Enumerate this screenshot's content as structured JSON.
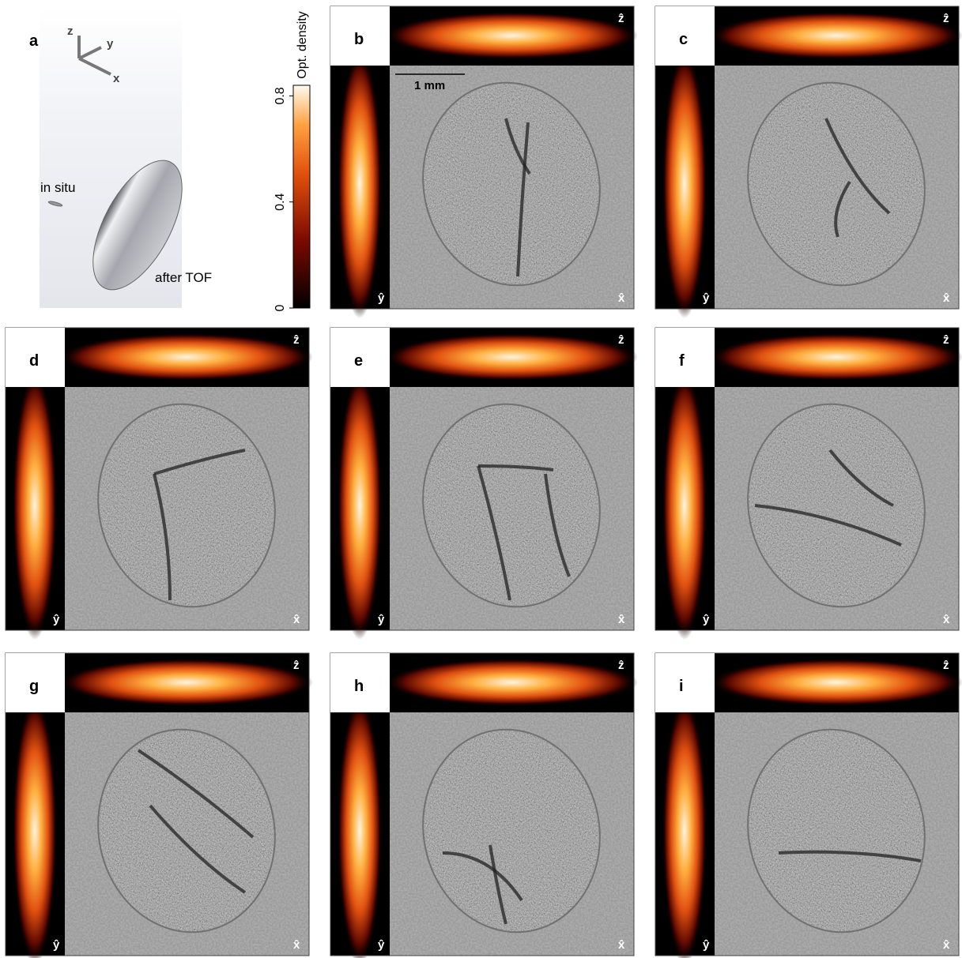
{
  "figure": {
    "panel_a": {
      "label": "a",
      "axes": {
        "z": "z",
        "y": "y",
        "x": "x"
      },
      "in_situ": "in situ",
      "after_tof": "after TOF"
    },
    "colorbar": {
      "title": "Opt. density",
      "lim": [
        0,
        0.84
      ],
      "ticks": [
        0,
        0.4,
        0.8
      ]
    },
    "scale_bar": "1 mm",
    "axis_labels": {
      "z": "ẑ",
      "y": "ŷ",
      "x": "x̂"
    },
    "panels": [
      {
        "label": "b"
      },
      {
        "label": "c"
      },
      {
        "label": "d"
      },
      {
        "label": "e"
      },
      {
        "label": "f"
      },
      {
        "label": "g"
      },
      {
        "label": "h"
      },
      {
        "label": "i"
      }
    ]
  }
}
